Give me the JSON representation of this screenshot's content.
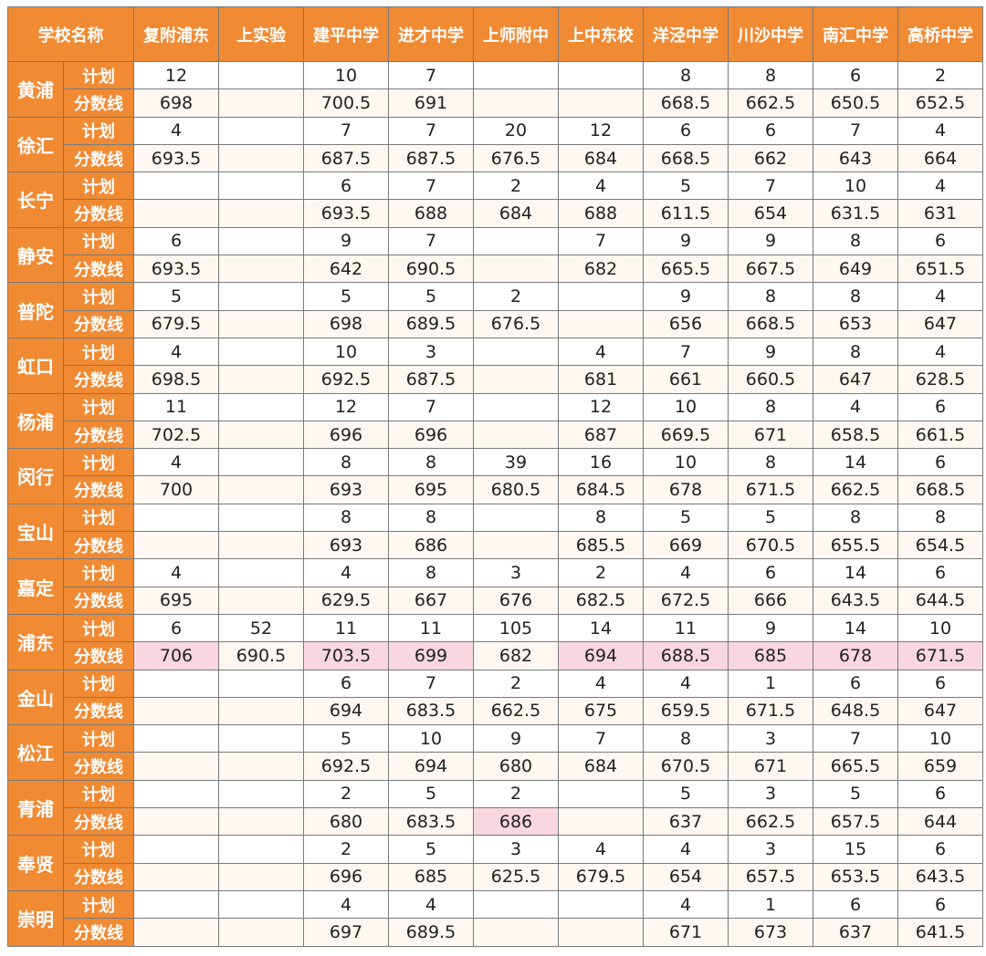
{
  "header": {
    "school_label": "学校名称",
    "schools": [
      "复附浦东",
      "上实验",
      "建平中学",
      "进才中学",
      "上师附中",
      "上中东校",
      "洋泾中学",
      "川沙中学",
      "南汇中学",
      "高桥中学"
    ]
  },
  "row_types": {
    "plan": "计划",
    "score": "分数线"
  },
  "districts": [
    {
      "name": "黄浦",
      "plan": [
        "12",
        "",
        "10",
        "7",
        "",
        "",
        "8",
        "8",
        "6",
        "2"
      ],
      "score": [
        "698",
        "",
        "700.5",
        "691",
        "",
        "",
        "668.5",
        "662.5",
        "650.5",
        "652.5"
      ]
    },
    {
      "name": "徐汇",
      "plan": [
        "4",
        "",
        "7",
        "7",
        "20",
        "12",
        "6",
        "6",
        "7",
        "4"
      ],
      "score": [
        "693.5",
        "",
        "687.5",
        "687.5",
        "676.5",
        "684",
        "668.5",
        "662",
        "643",
        "664"
      ]
    },
    {
      "name": "长宁",
      "plan": [
        "",
        "",
        "6",
        "7",
        "2",
        "4",
        "5",
        "7",
        "10",
        "4"
      ],
      "score": [
        "",
        "",
        "693.5",
        "688",
        "684",
        "688",
        "611.5",
        "654",
        "631.5",
        "631"
      ]
    },
    {
      "name": "静安",
      "plan": [
        "6",
        "",
        "9",
        "7",
        "",
        "7",
        "9",
        "9",
        "8",
        "6"
      ],
      "score": [
        "693.5",
        "",
        "642",
        "690.5",
        "",
        "682",
        "665.5",
        "667.5",
        "649",
        "651.5"
      ]
    },
    {
      "name": "普陀",
      "plan": [
        "5",
        "",
        "5",
        "5",
        "2",
        "",
        "9",
        "8",
        "8",
        "4"
      ],
      "score": [
        "679.5",
        "",
        "698",
        "689.5",
        "676.5",
        "",
        "656",
        "668.5",
        "653",
        "647"
      ]
    },
    {
      "name": "虹口",
      "plan": [
        "4",
        "",
        "10",
        "3",
        "",
        "4",
        "7",
        "9",
        "8",
        "4"
      ],
      "score": [
        "698.5",
        "",
        "692.5",
        "687.5",
        "",
        "681",
        "661",
        "660.5",
        "647",
        "628.5"
      ]
    },
    {
      "name": "杨浦",
      "plan": [
        "11",
        "",
        "12",
        "7",
        "",
        "12",
        "10",
        "8",
        "4",
        "6"
      ],
      "score": [
        "702.5",
        "",
        "696",
        "696",
        "",
        "687",
        "669.5",
        "671",
        "658.5",
        "661.5"
      ]
    },
    {
      "name": "闵行",
      "plan": [
        "4",
        "",
        "8",
        "8",
        "39",
        "16",
        "10",
        "8",
        "14",
        "6"
      ],
      "score": [
        "700",
        "",
        "693",
        "695",
        "680.5",
        "684.5",
        "678",
        "671.5",
        "662.5",
        "668.5"
      ]
    },
    {
      "name": "宝山",
      "plan": [
        "",
        "",
        "8",
        "8",
        "",
        "8",
        "5",
        "5",
        "8",
        "8"
      ],
      "score": [
        "",
        "",
        "693",
        "686",
        "",
        "685.5",
        "669",
        "670.5",
        "655.5",
        "654.5"
      ]
    },
    {
      "name": "嘉定",
      "plan": [
        "4",
        "",
        "4",
        "8",
        "3",
        "2",
        "4",
        "6",
        "14",
        "6"
      ],
      "score": [
        "695",
        "",
        "629.5",
        "667",
        "676",
        "682.5",
        "672.5",
        "666",
        "643.5",
        "644.5"
      ]
    },
    {
      "name": "浦东",
      "plan": [
        "6",
        "52",
        "11",
        "11",
        "105",
        "14",
        "11",
        "9",
        "14",
        "10"
      ],
      "score": [
        "706",
        "690.5",
        "703.5",
        "699",
        "682",
        "694",
        "688.5",
        "685",
        "678",
        "671.5"
      ]
    },
    {
      "name": "金山",
      "plan": [
        "",
        "",
        "6",
        "7",
        "2",
        "4",
        "4",
        "1",
        "6",
        "6"
      ],
      "score": [
        "",
        "",
        "694",
        "683.5",
        "662.5",
        "675",
        "659.5",
        "671.5",
        "648.5",
        "647"
      ]
    },
    {
      "name": "松江",
      "plan": [
        "",
        "",
        "5",
        "10",
        "9",
        "7",
        "8",
        "3",
        "7",
        "10"
      ],
      "score": [
        "",
        "",
        "692.5",
        "694",
        "680",
        "684",
        "670.5",
        "671",
        "665.5",
        "659"
      ]
    },
    {
      "name": "青浦",
      "plan": [
        "",
        "",
        "2",
        "5",
        "2",
        "",
        "5",
        "3",
        "5",
        "6"
      ],
      "score": [
        "",
        "",
        "680",
        "683.5",
        "686",
        "",
        "637",
        "662.5",
        "657.5",
        "644"
      ]
    },
    {
      "name": "奉贤",
      "plan": [
        "",
        "",
        "2",
        "5",
        "3",
        "4",
        "4",
        "3",
        "15",
        "6"
      ],
      "score": [
        "",
        "",
        "696",
        "685",
        "625.5",
        "679.5",
        "654",
        "657.5",
        "653.5",
        "643.5"
      ]
    },
    {
      "name": "崇明",
      "plan": [
        "",
        "",
        "4",
        "4",
        "",
        "",
        "4",
        "1",
        "6",
        "6"
      ],
      "score": [
        "",
        "",
        "697",
        "689.5",
        "",
        "",
        "671",
        "673",
        "637",
        "641.5"
      ]
    }
  ],
  "highlights": [
    {
      "district": 10,
      "row": "score",
      "cols": [
        0,
        2,
        3,
        5,
        6,
        7,
        8,
        9
      ]
    },
    {
      "district": 13,
      "row": "score",
      "cols": [
        4
      ]
    }
  ],
  "colors": {
    "header": "#f08a33",
    "highlight": "#f9d7e0",
    "score_row": "#fff7f1"
  }
}
